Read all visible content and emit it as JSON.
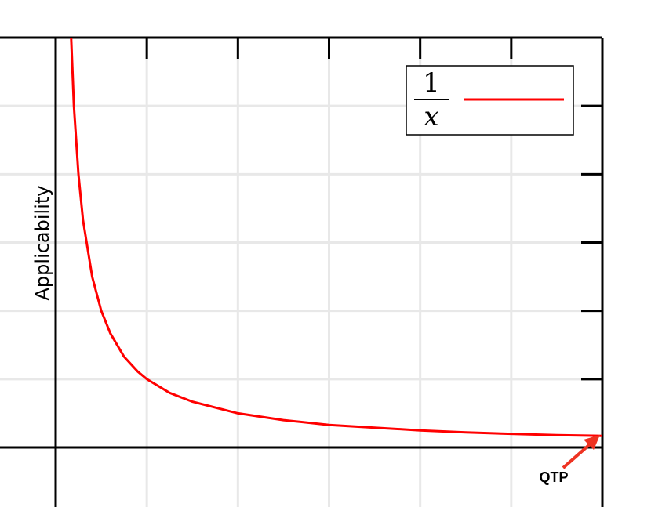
{
  "chart_data": {
    "type": "line",
    "title": "",
    "xlabel": "",
    "ylabel": "Applicability",
    "xlim": [
      0,
      6
    ],
    "ylim": [
      0,
      6
    ],
    "grid": true,
    "x_ticks": [
      1,
      2,
      3,
      4,
      5
    ],
    "y_ticks": [
      1,
      2,
      3,
      4,
      5
    ],
    "legend": {
      "placement": "top-right",
      "entries": [
        {
          "numerator": "1",
          "denominator": "x"
        }
      ]
    },
    "series": [
      {
        "color": "#ff0000",
        "x": [
          0.15,
          0.2,
          0.25,
          0.3,
          0.4,
          0.5,
          0.6,
          0.75,
          0.9,
          1.0,
          1.25,
          1.5,
          2.0,
          2.5,
          3.0,
          3.5,
          4.0,
          4.5,
          5.0,
          5.5,
          6.0
        ],
        "y": [
          6.67,
          5.0,
          4.0,
          3.33,
          2.5,
          2.0,
          1.67,
          1.33,
          1.11,
          1.0,
          0.8,
          0.67,
          0.5,
          0.4,
          0.33,
          0.29,
          0.25,
          0.22,
          0.2,
          0.18,
          0.17
        ]
      }
    ],
    "annotations": [
      {
        "text": "QTP",
        "x": 6.0,
        "y": 0.17
      }
    ]
  },
  "colors": {
    "curve": "#ff0000",
    "grid": "#e8e8e8",
    "axis": "#000000",
    "arrow": "#ee3322"
  }
}
